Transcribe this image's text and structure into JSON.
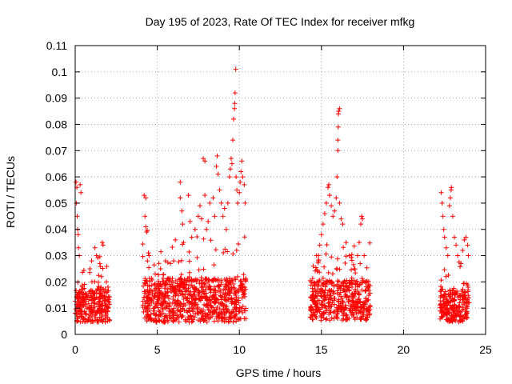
{
  "chart_data": {
    "type": "scatter",
    "title": "Day 195 of 2023, Rate Of TEC Index for receiver mfkg",
    "xlabel": "GPS time / hours",
    "ylabel": "ROTI / TECUs",
    "xlim": [
      0,
      25
    ],
    "ylim": [
      0,
      0.11
    ],
    "xticks": [
      "0",
      "5",
      "10",
      "15",
      "20",
      "25"
    ],
    "yticks": [
      "0",
      "0.01",
      "0.02",
      "0.03",
      "0.04",
      "0.05",
      "0.06",
      "0.07",
      "0.08",
      "0.09",
      "0.1",
      "0.11"
    ],
    "grid": true,
    "marker": "+",
    "colors": {
      "points": "#ff0000",
      "grid": "#a0a0a0",
      "axes": "#000000"
    },
    "series": [
      {
        "segments": [
          {
            "x_start": 0.0,
            "x_end": 2.1,
            "base": 0.011,
            "spread": 0.009
          },
          {
            "x_start": 4.1,
            "x_end": 10.4,
            "base": 0.013,
            "spread": 0.012
          },
          {
            "x_start": 14.3,
            "x_end": 18.0,
            "base": 0.013,
            "spread": 0.011
          },
          {
            "x_start": 22.2,
            "x_end": 24.0,
            "base": 0.011,
            "spread": 0.009
          }
        ],
        "peaks": [
          [
            0.05,
            0.058
          ],
          [
            0.1,
            0.056
          ],
          [
            0.08,
            0.05
          ],
          [
            0.12,
            0.045
          ],
          [
            0.15,
            0.04
          ],
          [
            0.18,
            0.038
          ],
          [
            0.2,
            0.033
          ],
          [
            0.25,
            0.03
          ],
          [
            0.3,
            0.057
          ],
          [
            0.35,
            0.054
          ],
          [
            0.9,
            0.025
          ],
          [
            1.0,
            0.028
          ],
          [
            1.2,
            0.033
          ],
          [
            1.3,
            0.03
          ],
          [
            1.5,
            0.027
          ],
          [
            1.6,
            0.022
          ],
          [
            1.65,
            0.035
          ],
          [
            1.7,
            0.034
          ],
          [
            1.9,
            0.02
          ],
          [
            2.0,
            0.018
          ],
          [
            4.2,
            0.053
          ],
          [
            4.3,
            0.052
          ],
          [
            4.25,
            0.045
          ],
          [
            4.3,
            0.041
          ],
          [
            4.35,
            0.039
          ],
          [
            4.4,
            0.028
          ],
          [
            4.5,
            0.03
          ],
          [
            5.2,
            0.025
          ],
          [
            5.5,
            0.028
          ],
          [
            5.8,
            0.027
          ],
          [
            6.0,
            0.028
          ],
          [
            6.1,
            0.036
          ],
          [
            6.4,
            0.058
          ],
          [
            6.4,
            0.052
          ],
          [
            6.5,
            0.047
          ],
          [
            6.55,
            0.042
          ],
          [
            6.6,
            0.035
          ],
          [
            6.9,
            0.053
          ],
          [
            7.0,
            0.043
          ],
          [
            7.1,
            0.037
          ],
          [
            7.3,
            0.04
          ],
          [
            7.5,
            0.045
          ],
          [
            7.6,
            0.049
          ],
          [
            7.7,
            0.044
          ],
          [
            7.8,
            0.067
          ],
          [
            7.9,
            0.066
          ],
          [
            7.9,
            0.053
          ],
          [
            8.0,
            0.04
          ],
          [
            8.1,
            0.043
          ],
          [
            8.2,
            0.05
          ],
          [
            8.4,
            0.052
          ],
          [
            8.5,
            0.045
          ],
          [
            8.6,
            0.064
          ],
          [
            8.65,
            0.068
          ],
          [
            8.7,
            0.061
          ],
          [
            8.8,
            0.055
          ],
          [
            8.9,
            0.05
          ],
          [
            9.0,
            0.045
          ],
          [
            9.1,
            0.048
          ],
          [
            9.2,
            0.04
          ],
          [
            9.3,
            0.05
          ],
          [
            9.4,
            0.06
          ],
          [
            9.45,
            0.063
          ],
          [
            9.5,
            0.067
          ],
          [
            9.55,
            0.065
          ],
          [
            9.6,
            0.074
          ],
          [
            9.65,
            0.082
          ],
          [
            9.7,
            0.086
          ],
          [
            9.72,
            0.088
          ],
          [
            9.74,
            0.092
          ],
          [
            9.78,
            0.101
          ],
          [
            9.8,
            0.06
          ],
          [
            9.85,
            0.055
          ],
          [
            9.9,
            0.05
          ],
          [
            10.0,
            0.054
          ],
          [
            10.05,
            0.058
          ],
          [
            10.1,
            0.062
          ],
          [
            10.15,
            0.066
          ],
          [
            10.2,
            0.06
          ],
          [
            10.3,
            0.057
          ],
          [
            10.35,
            0.05
          ],
          [
            14.5,
            0.026
          ],
          [
            14.7,
            0.03
          ],
          [
            14.9,
            0.034
          ],
          [
            15.0,
            0.038
          ],
          [
            15.1,
            0.042
          ],
          [
            15.2,
            0.046
          ],
          [
            15.3,
            0.05
          ],
          [
            15.4,
            0.056
          ],
          [
            15.45,
            0.057
          ],
          [
            15.5,
            0.053
          ],
          [
            15.6,
            0.049
          ],
          [
            15.7,
            0.045
          ],
          [
            15.8,
            0.047
          ],
          [
            15.9,
            0.052
          ],
          [
            15.95,
            0.06
          ],
          [
            16.0,
            0.07
          ],
          [
            16.0,
            0.074
          ],
          [
            16.02,
            0.079
          ],
          [
            16.03,
            0.084
          ],
          [
            16.05,
            0.085
          ],
          [
            16.1,
            0.086
          ],
          [
            16.1,
            0.05
          ],
          [
            16.2,
            0.044
          ],
          [
            16.3,
            0.042
          ],
          [
            16.5,
            0.035
          ],
          [
            16.7,
            0.03
          ],
          [
            17.0,
            0.025
          ],
          [
            17.2,
            0.03
          ],
          [
            17.3,
            0.035
          ],
          [
            17.4,
            0.042
          ],
          [
            17.45,
            0.045
          ],
          [
            17.5,
            0.044
          ],
          [
            17.6,
            0.03
          ],
          [
            22.3,
            0.054
          ],
          [
            22.35,
            0.05
          ],
          [
            22.4,
            0.045
          ],
          [
            22.45,
            0.04
          ],
          [
            22.5,
            0.037
          ],
          [
            22.6,
            0.033
          ],
          [
            22.7,
            0.03
          ],
          [
            22.8,
            0.049
          ],
          [
            22.85,
            0.052
          ],
          [
            22.9,
            0.055
          ],
          [
            22.92,
            0.056
          ],
          [
            23.0,
            0.045
          ],
          [
            23.1,
            0.037
          ],
          [
            23.2,
            0.034
          ],
          [
            23.3,
            0.03
          ],
          [
            23.5,
            0.027
          ],
          [
            23.6,
            0.032
          ],
          [
            23.7,
            0.036
          ],
          [
            23.8,
            0.037
          ],
          [
            23.9,
            0.034
          ],
          [
            23.95,
            0.03
          ]
        ]
      }
    ]
  }
}
